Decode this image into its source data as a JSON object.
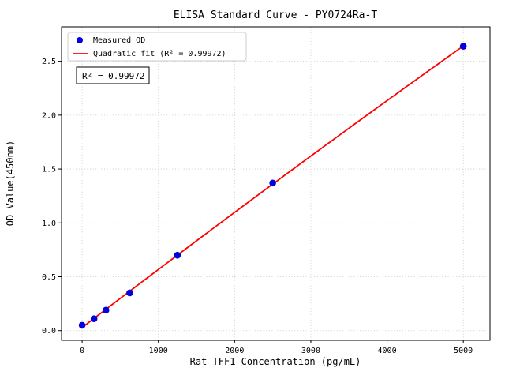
{
  "chart_data": {
    "type": "scatter",
    "title": "ELISA Standard Curve - PY0724Ra-T",
    "xlabel": "Rat TFF1 Concentration (pg/mL)",
    "ylabel": "OD Value(450nm)",
    "xlim": [
      -270,
      5350
    ],
    "ylim": [
      -0.09,
      2.82
    ],
    "x_ticks": [
      0,
      1000,
      2000,
      3000,
      4000,
      5000
    ],
    "y_ticks": [
      0.0,
      0.5,
      1.0,
      1.5,
      2.0,
      2.5
    ],
    "grid": true,
    "grid_style": "dotted",
    "legend_position": "upper left",
    "series": [
      {
        "name": "Measured OD",
        "type": "scatter",
        "color": "#0000e0",
        "x": [
          0,
          156.25,
          312.5,
          625,
          1250,
          2500,
          5000
        ],
        "y": [
          0.05,
          0.11,
          0.19,
          0.35,
          0.7,
          1.37,
          2.64
        ]
      },
      {
        "name": "Quadratic fit (R² = 0.99972)",
        "type": "line",
        "fit": "quadratic",
        "color": "#ff0000"
      }
    ],
    "annotation": "R² = 0.99972",
    "r_squared": 0.99972
  }
}
